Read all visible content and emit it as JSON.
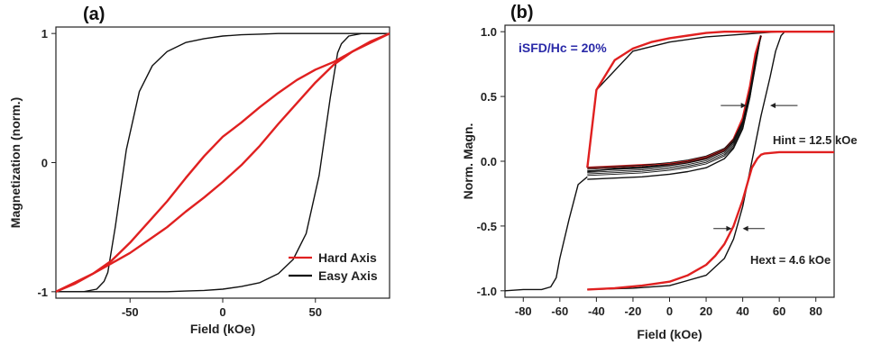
{
  "chart_data": [
    {
      "panel": "(a)",
      "type": "line",
      "xlabel": "Field (kOe)",
      "ylabel": "Magnetization (norm.)",
      "xlim": [
        -90,
        90
      ],
      "ylim": [
        -1.05,
        1.05
      ],
      "xticks": [
        -50,
        0,
        50
      ],
      "xtick_labels": [
        "-50",
        "0",
        "50"
      ],
      "yticks": [
        -1,
        0,
        1
      ],
      "ytick_labels": [
        "-1",
        "0",
        "1"
      ],
      "legend_position": "bottom-right",
      "series": [
        {
          "name": "Easy Axis",
          "color": "#111111",
          "branches": [
            {
              "x": [
                -90,
                -75,
                -68,
                -64,
                -62,
                -58,
                -52,
                -45,
                -38,
                -30,
                -20,
                -10,
                0,
                10,
                20,
                30,
                40,
                50,
                60,
                70,
                80,
                90
              ],
              "y": [
                -1.0,
                -1.0,
                -0.98,
                -0.92,
                -0.85,
                -0.5,
                0.1,
                0.55,
                0.75,
                0.86,
                0.93,
                0.96,
                0.98,
                0.99,
                0.995,
                1.0,
                1.0,
                1.0,
                1.0,
                1.0,
                1.0,
                1.0
              ]
            },
            {
              "x": [
                90,
                75,
                68,
                64,
                62,
                58,
                52,
                45,
                38,
                30,
                20,
                10,
                0,
                -10,
                -20,
                -30,
                -40,
                -50,
                -60,
                -70,
                -80,
                -90
              ],
              "y": [
                1.0,
                1.0,
                0.98,
                0.92,
                0.85,
                0.5,
                -0.1,
                -0.55,
                -0.75,
                -0.86,
                -0.93,
                -0.96,
                -0.98,
                -0.99,
                -0.995,
                -1.0,
                -1.0,
                -1.0,
                -1.0,
                -1.0,
                -1.0,
                -1.0
              ]
            }
          ]
        },
        {
          "name": "Hard Axis",
          "color": "#e02020",
          "branches": [
            {
              "x": [
                -90,
                -80,
                -70,
                -60,
                -50,
                -40,
                -30,
                -20,
                -10,
                0,
                10,
                20,
                30,
                40,
                50,
                60,
                70,
                80,
                90
              ],
              "y": [
                -1.0,
                -0.93,
                -0.86,
                -0.78,
                -0.7,
                -0.6,
                -0.5,
                -0.38,
                -0.27,
                -0.15,
                -0.02,
                0.13,
                0.3,
                0.46,
                0.62,
                0.76,
                0.86,
                0.94,
                1.0
              ]
            },
            {
              "x": [
                90,
                80,
                70,
                60,
                50,
                40,
                30,
                20,
                10,
                0,
                -10,
                -20,
                -30,
                -40,
                -50,
                -60,
                -70,
                -80,
                -90
              ],
              "y": [
                1.0,
                0.93,
                0.86,
                0.78,
                0.72,
                0.64,
                0.54,
                0.43,
                0.31,
                0.2,
                0.05,
                -0.12,
                -0.3,
                -0.46,
                -0.62,
                -0.76,
                -0.86,
                -0.94,
                -1.0
              ]
            }
          ]
        }
      ]
    },
    {
      "panel": "(b)",
      "type": "line",
      "xlabel": "Field (kOe)",
      "ylabel": "Norm. Magn.",
      "xlim": [
        -90,
        90
      ],
      "ylim": [
        -1.05,
        1.05
      ],
      "xticks": [
        -80,
        -60,
        -40,
        -20,
        0,
        20,
        40,
        60,
        80
      ],
      "xtick_labels": [
        "-80",
        "-60",
        "-40",
        "-20",
        "0",
        "20",
        "40",
        "60",
        "80"
      ],
      "yticks": [
        -1.0,
        -0.5,
        0.0,
        0.5,
        1.0
      ],
      "ytick_labels": [
        "-1.0",
        "-0.5",
        "0.0",
        "0.5",
        "1.0"
      ],
      "series": [
        {
          "name": "",
          "color": "#111111",
          "branches": [
            {
              "x": [
                -90,
                -80,
                -70,
                -65,
                -62,
                -60,
                -55,
                -50,
                -45
              ],
              "y": [
                -1.0,
                -0.99,
                -0.99,
                -0.97,
                -0.9,
                -0.75,
                -0.45,
                -0.18,
                -0.12
              ]
            },
            {
              "x": [
                -45,
                -30,
                -15,
                0,
                10,
                20,
                30,
                35,
                40,
                44,
                47,
                50
              ],
              "y": [
                -0.14,
                -0.13,
                -0.12,
                -0.1,
                -0.08,
                -0.05,
                0.02,
                0.1,
                0.25,
                0.5,
                0.8,
                0.97
              ]
            },
            {
              "x": [
                -45,
                -30,
                -15,
                0,
                10,
                20,
                30,
                35,
                40,
                44,
                47,
                50
              ],
              "y": [
                -0.08,
                -0.06,
                -0.05,
                -0.03,
                -0.01,
                0.02,
                0.08,
                0.15,
                0.3,
                0.55,
                0.82,
                0.97
              ]
            },
            {
              "x": [
                -45,
                -40,
                -20,
                0,
                20,
                40,
                50,
                60,
                70,
                80,
                90
              ],
              "y": [
                -0.05,
                0.55,
                0.85,
                0.92,
                0.96,
                0.98,
                0.99,
                1.0,
                1.0,
                1.0,
                1.0
              ]
            },
            {
              "x": [
                -45,
                -20,
                0,
                20,
                30,
                35,
                40,
                45,
                50,
                55,
                58,
                61,
                63
              ],
              "y": [
                -0.99,
                -0.98,
                -0.96,
                -0.88,
                -0.75,
                -0.6,
                -0.35,
                0.0,
                0.35,
                0.65,
                0.85,
                0.97,
                1.0
              ]
            }
          ]
        },
        {
          "name": "",
          "color": "#e02020",
          "branches": [
            {
              "x": [
                -45,
                -40,
                -30,
                -20,
                -10,
                0,
                10,
                20,
                30,
                40,
                50,
                60,
                70,
                80,
                90
              ],
              "y": [
                -0.05,
                0.55,
                0.78,
                0.87,
                0.92,
                0.95,
                0.97,
                0.99,
                1.0,
                1.0,
                1.0,
                1.0,
                1.0,
                1.0,
                1.0
              ]
            },
            {
              "x": [
                -45,
                -30,
                -15,
                0,
                10,
                20,
                30,
                35,
                40,
                44,
                47,
                50
              ],
              "y": [
                -0.05,
                -0.04,
                -0.03,
                -0.02,
                0.0,
                0.03,
                0.09,
                0.17,
                0.33,
                0.58,
                0.83,
                0.97
              ]
            },
            {
              "x": [
                -45,
                -30,
                -15,
                0,
                10,
                20,
                25,
                30,
                35,
                40,
                45,
                48,
                50,
                52,
                60,
                90
              ],
              "y": [
                -0.99,
                -0.98,
                -0.96,
                -0.93,
                -0.88,
                -0.8,
                -0.73,
                -0.64,
                -0.5,
                -0.3,
                -0.05,
                0.02,
                0.05,
                0.06,
                0.07,
                0.07
              ]
            }
          ]
        }
      ],
      "annotations": {
        "isfd": "iSFD/Hc = 20%",
        "hint": "Hint = 12.5 kOe",
        "hext": "Hext = 4.6 kOe"
      }
    }
  ]
}
